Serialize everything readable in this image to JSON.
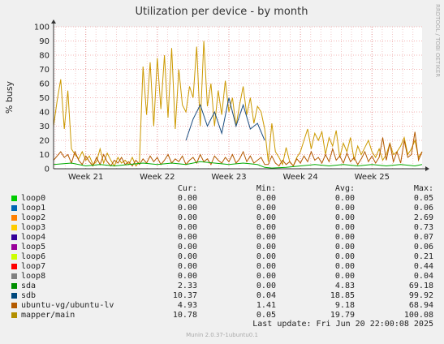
{
  "chart_data": {
    "type": "line",
    "title": "Utilization per device - by month",
    "ylabel": "% busy",
    "ylim": [
      0,
      100
    ],
    "yticks": [
      0,
      10,
      20,
      30,
      40,
      50,
      60,
      70,
      80,
      90,
      100
    ],
    "xticks": [
      "Week 21",
      "Week 22",
      "Week 23",
      "Week 24",
      "Week 25"
    ],
    "xrange_weeks": [
      20.55,
      25.7
    ],
    "grid": true,
    "series": [
      {
        "name": "mapper/main",
        "color": "#cc9900",
        "x": [
          20.55,
          20.6,
          20.65,
          20.7,
          20.75,
          20.8,
          20.85,
          20.9,
          20.95,
          21.0,
          21.05,
          21.1,
          21.15,
          21.2,
          21.25,
          21.3,
          21.35,
          21.4,
          21.45,
          21.5,
          21.55,
          21.6,
          21.65,
          21.7,
          21.75,
          21.8,
          21.85,
          21.9,
          21.95,
          22.0,
          22.05,
          22.1,
          22.15,
          22.2,
          22.25,
          22.3,
          22.35,
          22.4,
          22.45,
          22.5,
          22.55,
          22.6,
          22.65,
          22.7,
          22.75,
          22.8,
          22.85,
          22.9,
          22.95,
          23.0,
          23.05,
          23.1,
          23.15,
          23.2,
          23.25,
          23.3,
          23.35,
          23.4,
          23.45,
          23.5,
          23.55,
          23.6,
          23.65,
          23.7,
          23.75,
          23.8,
          23.85,
          23.9,
          23.95,
          24.0,
          24.05,
          24.1,
          24.15,
          24.2,
          24.25,
          24.3,
          24.35,
          24.4,
          24.45,
          24.5,
          24.55,
          24.6,
          24.65,
          24.7,
          24.75,
          24.8,
          24.85,
          24.9,
          24.95,
          25.0,
          25.05,
          25.1,
          25.15,
          25.2,
          25.25,
          25.3,
          25.35,
          25.4,
          25.45,
          25.5,
          25.55,
          25.6,
          25.65,
          25.7
        ],
        "values": [
          30,
          48,
          63,
          28,
          55,
          14,
          10,
          7,
          12,
          6,
          9,
          3,
          5,
          14,
          4,
          11,
          6,
          2,
          8,
          4,
          6,
          3,
          8,
          2,
          5,
          72,
          38,
          75,
          30,
          78,
          42,
          80,
          36,
          85,
          28,
          70,
          45,
          40,
          58,
          50,
          86,
          30,
          90,
          44,
          60,
          30,
          55,
          38,
          62,
          40,
          50,
          30,
          45,
          58,
          38,
          50,
          32,
          44,
          40,
          28,
          5,
          32,
          12,
          8,
          3,
          15,
          5,
          2,
          8,
          12,
          20,
          28,
          14,
          25,
          20,
          26,
          10,
          22,
          16,
          27,
          8,
          18,
          12,
          22,
          6,
          16,
          10,
          15,
          20,
          12,
          8,
          14,
          6,
          10,
          18,
          10,
          12,
          16,
          22,
          10,
          14,
          20,
          8,
          12
        ]
      },
      {
        "name": "ubuntu-vg/ubuntu-lv",
        "color": "#b35900",
        "x": [
          20.55,
          20.6,
          20.65,
          20.7,
          20.75,
          20.8,
          20.85,
          20.9,
          20.95,
          21.0,
          21.05,
          21.1,
          21.15,
          21.2,
          21.25,
          21.3,
          21.35,
          21.4,
          21.45,
          21.5,
          21.55,
          21.6,
          21.65,
          21.7,
          21.75,
          21.8,
          21.85,
          21.9,
          21.95,
          22.0,
          22.05,
          22.1,
          22.15,
          22.2,
          22.25,
          22.3,
          22.35,
          22.4,
          22.45,
          22.5,
          22.55,
          22.6,
          22.65,
          22.7,
          22.75,
          22.8,
          22.85,
          22.9,
          22.95,
          23.0,
          23.05,
          23.1,
          23.15,
          23.2,
          23.25,
          23.3,
          23.35,
          23.4,
          23.45,
          23.5,
          23.55,
          23.6,
          23.65,
          23.7,
          23.75,
          23.8,
          23.85,
          23.9,
          23.95,
          24.0,
          24.05,
          24.1,
          24.15,
          24.2,
          24.25,
          24.3,
          24.35,
          24.4,
          24.45,
          24.5,
          24.55,
          24.6,
          24.65,
          24.7,
          24.75,
          24.8,
          24.85,
          24.9,
          24.95,
          25.0,
          25.05,
          25.1,
          25.15,
          25.2,
          25.25,
          25.3,
          25.35,
          25.4,
          25.45,
          25.5,
          25.55,
          25.6,
          25.65,
          25.7
        ],
        "values": [
          6,
          9,
          12,
          8,
          10,
          4,
          12,
          6,
          3,
          9,
          5,
          2,
          8,
          3,
          10,
          5,
          2,
          6,
          4,
          8,
          3,
          5,
          2,
          6,
          3,
          7,
          4,
          9,
          5,
          8,
          3,
          6,
          10,
          4,
          7,
          5,
          9,
          3,
          6,
          8,
          4,
          10,
          5,
          7,
          3,
          9,
          6,
          4,
          8,
          5,
          10,
          4,
          7,
          12,
          5,
          9,
          4,
          6,
          8,
          3,
          3,
          9,
          4,
          2,
          6,
          3,
          5,
          2,
          7,
          4,
          9,
          5,
          12,
          6,
          8,
          4,
          10,
          5,
          14,
          6,
          9,
          4,
          11,
          5,
          8,
          3,
          7,
          12,
          5,
          9,
          4,
          8,
          22,
          6,
          18,
          5,
          12,
          4,
          20,
          8,
          10,
          26,
          6,
          12
        ]
      },
      {
        "name": "sda",
        "color": "#00aa00",
        "x": [
          20.55,
          20.8,
          21.0,
          21.2,
          21.4,
          21.6,
          21.8,
          22.0,
          22.2,
          22.4,
          22.6,
          22.8,
          23.0,
          23.2,
          23.4,
          23.5,
          23.6,
          23.8,
          24.0,
          24.2,
          24.4,
          24.6,
          24.8,
          25.0,
          25.2,
          25.4,
          25.6,
          25.7
        ],
        "values": [
          3,
          4,
          2,
          3,
          2,
          3,
          4,
          3,
          4,
          3,
          5,
          4,
          3,
          4,
          3,
          1,
          0.5,
          1,
          2,
          3,
          2,
          3,
          2,
          3,
          2,
          3,
          2,
          3
        ]
      },
      {
        "name": "sdb",
        "color": "#1a4d80",
        "x": [
          22.4,
          22.5,
          22.6,
          22.7,
          22.8,
          22.9,
          23.0,
          23.1,
          23.2,
          23.3,
          23.4,
          23.5
        ],
        "values": [
          20,
          35,
          45,
          30,
          40,
          25,
          50,
          30,
          45,
          28,
          32,
          20
        ]
      }
    ],
    "legend": {
      "columns": [
        "Cur:",
        "Min:",
        "Avg:",
        "Max:"
      ],
      "rows": [
        {
          "name": "loop0",
          "color": "#00cc00",
          "cur": "0.00",
          "min": "0.00",
          "avg": "0.00",
          "max": "0.05"
        },
        {
          "name": "loop1",
          "color": "#0066b3",
          "cur": "0.00",
          "min": "0.00",
          "avg": "0.00",
          "max": "0.06"
        },
        {
          "name": "loop2",
          "color": "#ff8000",
          "cur": "0.00",
          "min": "0.00",
          "avg": "0.00",
          "max": "2.69"
        },
        {
          "name": "loop3",
          "color": "#ffcc00",
          "cur": "0.00",
          "min": "0.00",
          "avg": "0.00",
          "max": "0.73"
        },
        {
          "name": "loop4",
          "color": "#330099",
          "cur": "0.00",
          "min": "0.00",
          "avg": "0.00",
          "max": "0.07"
        },
        {
          "name": "loop5",
          "color": "#990099",
          "cur": "0.00",
          "min": "0.00",
          "avg": "0.00",
          "max": "0.06"
        },
        {
          "name": "loop6",
          "color": "#ccff00",
          "cur": "0.00",
          "min": "0.00",
          "avg": "0.00",
          "max": "0.21"
        },
        {
          "name": "loop7",
          "color": "#ff0000",
          "cur": "0.00",
          "min": "0.00",
          "avg": "0.00",
          "max": "0.44"
        },
        {
          "name": "loop8",
          "color": "#808080",
          "cur": "0.00",
          "min": "0.00",
          "avg": "0.00",
          "max": "0.04"
        },
        {
          "name": "sda",
          "color": "#008f00",
          "cur": "2.33",
          "min": "0.00",
          "avg": "4.83",
          "max": "69.18"
        },
        {
          "name": "sdb",
          "color": "#00487d",
          "cur": "10.37",
          "min": "0.04",
          "avg": "18.85",
          "max": "99.92"
        },
        {
          "name": "ubuntu-vg/ubuntu-lv",
          "color": "#b35a00",
          "cur": "4.93",
          "min": "1.41",
          "avg": "9.18",
          "max": "68.94"
        },
        {
          "name": "mapper/main",
          "color": "#b38f00",
          "cur": "10.78",
          "min": "0.05",
          "avg": "19.79",
          "max": "100.08"
        }
      ]
    }
  },
  "side_text": "RRDTOOL / TOBI OETIKER",
  "last_update": "Last update:  Fri Jun 20 22:00:08 2025",
  "footer": "Munin 2.0.37-1ubuntu0.1"
}
